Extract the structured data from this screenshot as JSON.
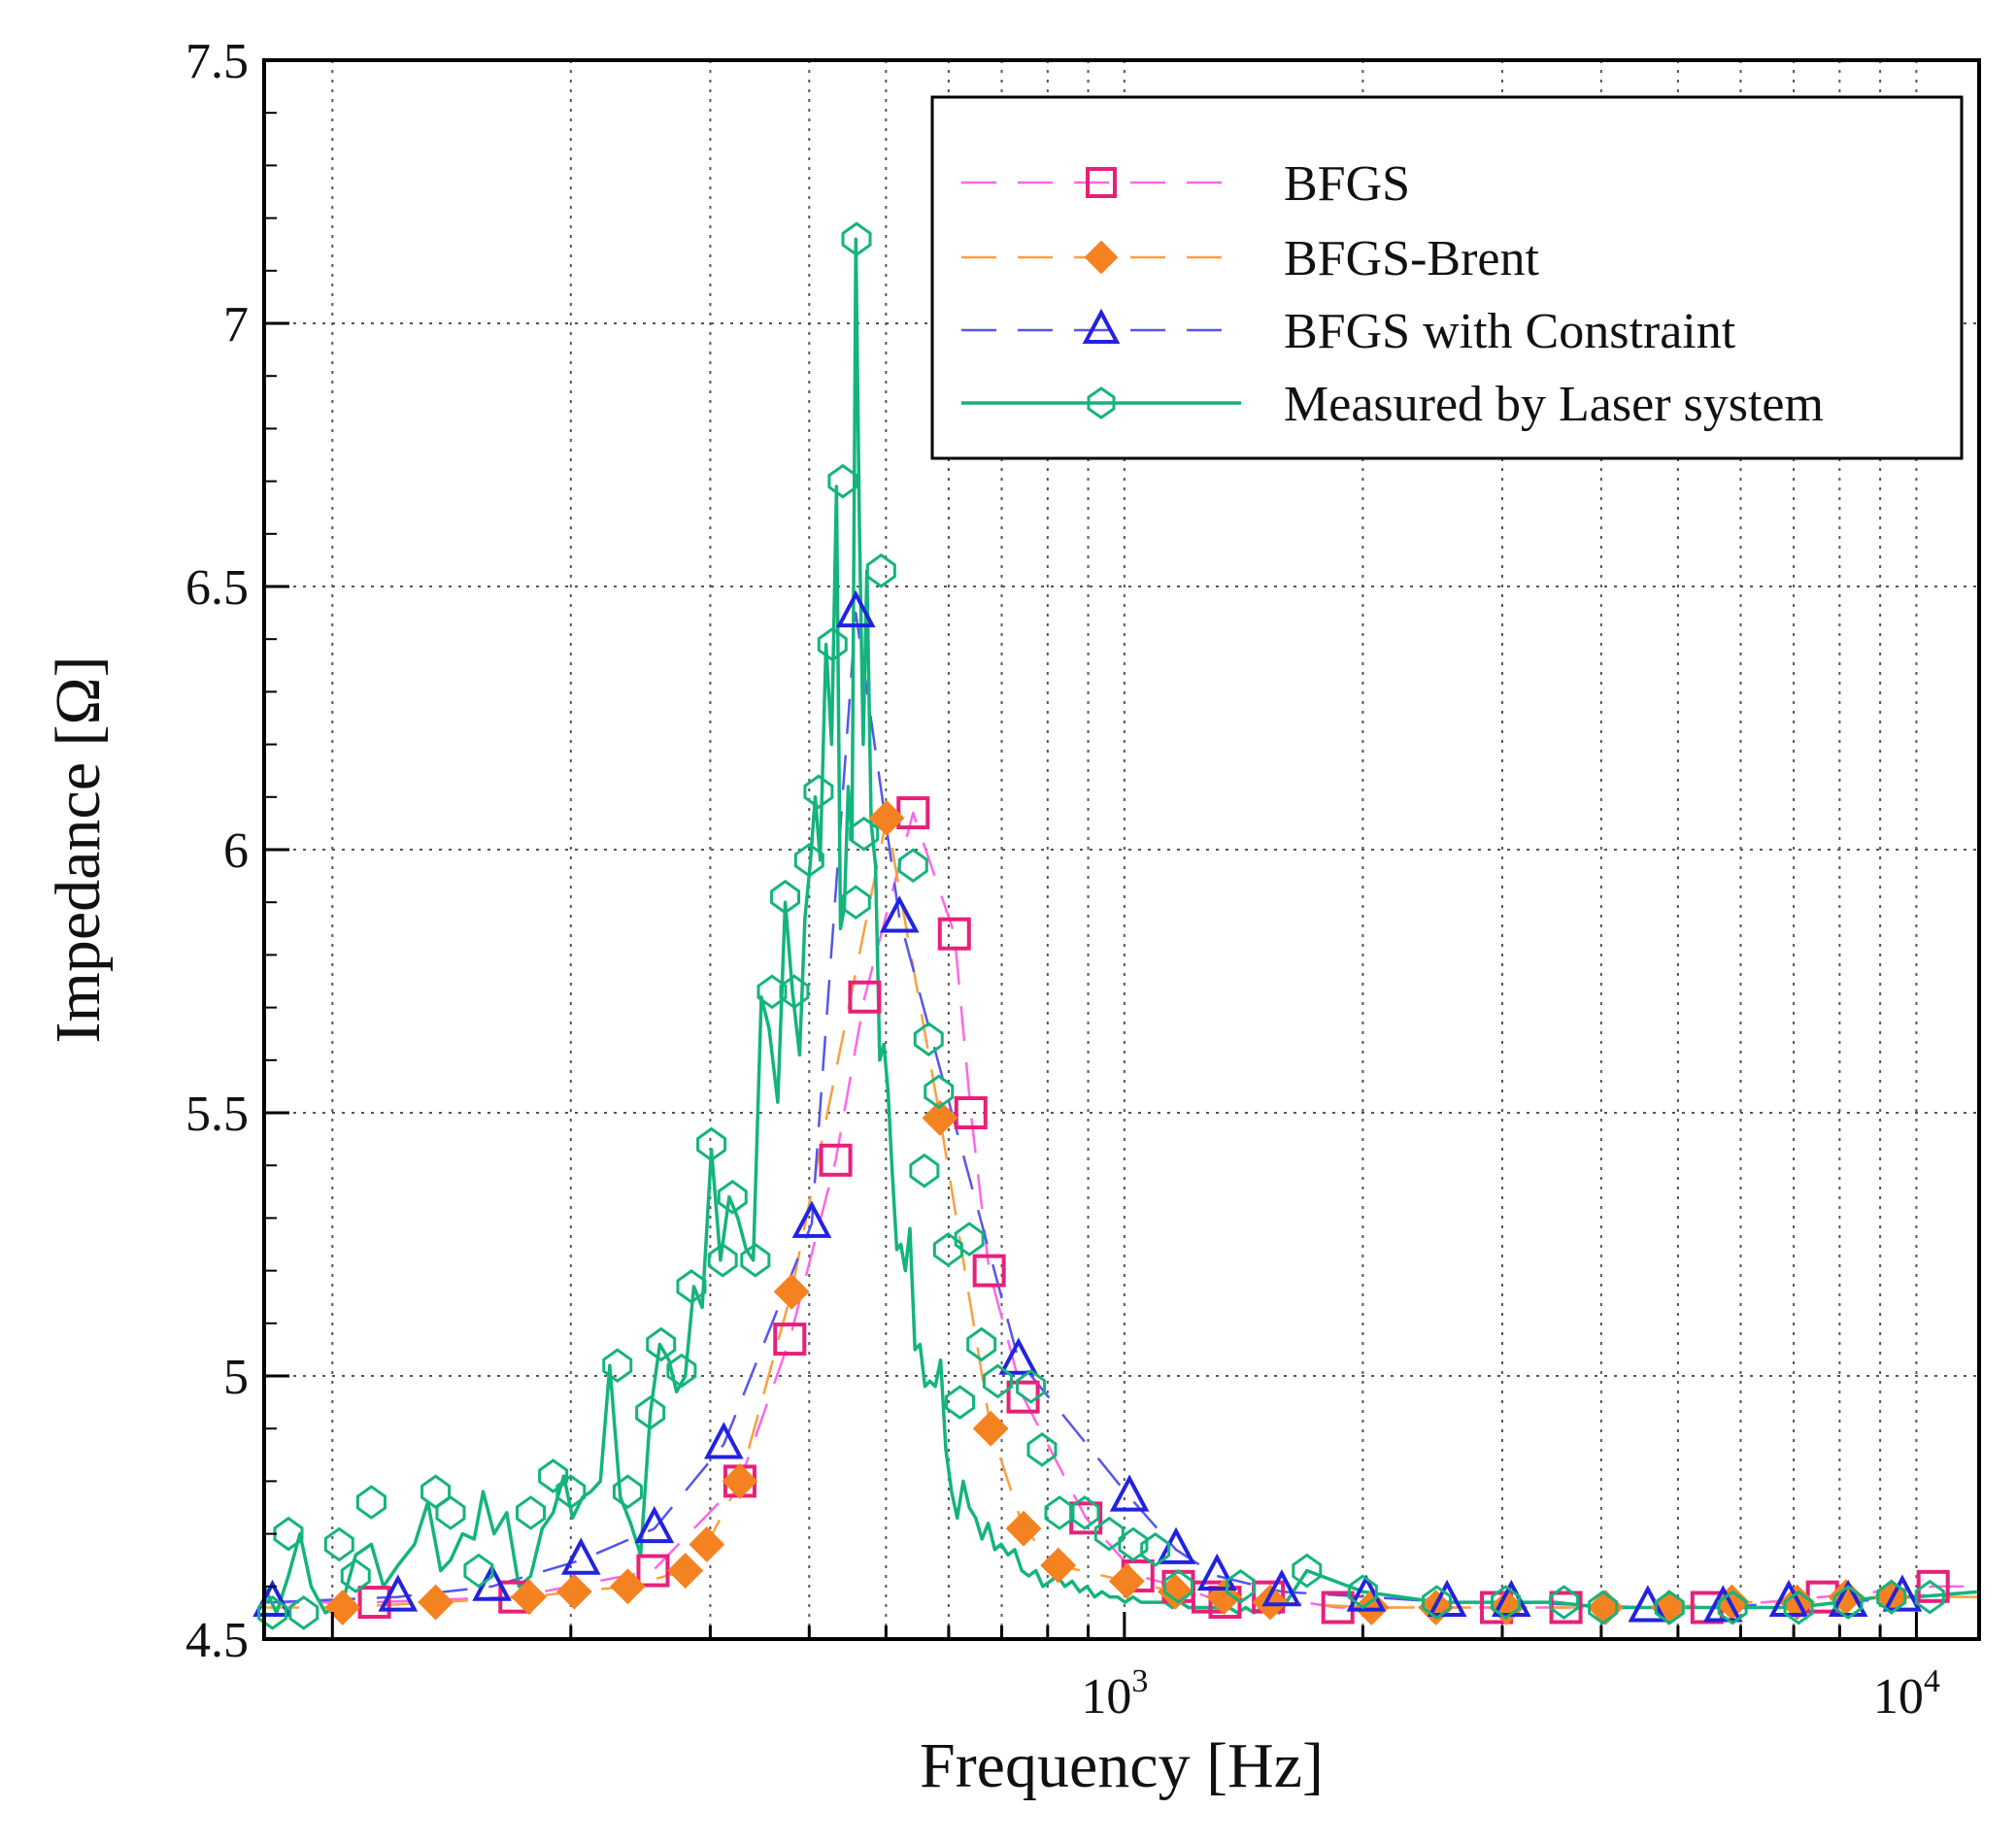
{
  "chart_data": {
    "type": "line",
    "title": "",
    "xlabel": "Frequency [Hz]",
    "ylabel": "Impedance [Ω]",
    "xscale": "log",
    "xlim": [
      82,
      12000
    ],
    "ylim": [
      4.5,
      7.5
    ],
    "grid": true,
    "legend_position": "top-right",
    "x_ticks": [
      {
        "value": 1000,
        "base": "10",
        "exp": "3"
      },
      {
        "value": 10000,
        "base": "10",
        "exp": "4"
      }
    ],
    "y_ticks": [
      {
        "value": 4.5,
        "label": "4.5"
      },
      {
        "value": 5,
        "label": "5"
      },
      {
        "value": 5.5,
        "label": "5.5"
      },
      {
        "value": 6,
        "label": "6"
      },
      {
        "value": 6.5,
        "label": "6.5"
      },
      {
        "value": 7,
        "label": "7"
      },
      {
        "value": 7.5,
        "label": "7.5"
      }
    ],
    "series": [
      {
        "name": "BFGS",
        "color": "#e8207a",
        "line_color": "#ff66e8",
        "marker": "square",
        "dash": true,
        "x": [
          82,
          113,
          170,
          254,
          327,
          378,
          432,
          470,
          541,
          610,
          640,
          675,
          745,
          894,
          1040,
          1170,
          1275,
          1340,
          1520,
          1860,
          2950,
          3610,
          5440,
          7610,
          10500,
          12000
        ],
        "y": [
          4.57,
          4.57,
          4.58,
          4.63,
          4.8,
          5.07,
          5.41,
          5.72,
          6.07,
          5.84,
          5.5,
          5.2,
          4.96,
          4.73,
          4.62,
          4.6,
          4.58,
          4.57,
          4.58,
          4.56,
          4.56,
          4.56,
          4.56,
          4.58,
          4.6,
          4.6
        ]
      },
      {
        "name": "BFGS-Brent",
        "color": "#f58220",
        "line_color": "#f9a040",
        "marker": "diamond",
        "dash": true,
        "x": [
          82,
          103,
          135,
          177,
          202,
          236,
          279,
          297,
          327,
          380,
          501,
          585,
          678,
          746,
          825,
          1007,
          1160,
          1336,
          1528,
          2051,
          2473,
          3038,
          4049,
          4867,
          5847,
          7069,
          8146,
          9300,
          12000
        ],
        "y": [
          4.56,
          4.56,
          4.57,
          4.58,
          4.59,
          4.6,
          4.63,
          4.68,
          4.8,
          5.16,
          6.06,
          5.49,
          4.9,
          4.71,
          4.64,
          4.61,
          4.59,
          4.58,
          4.57,
          4.56,
          4.56,
          4.56,
          4.56,
          4.56,
          4.57,
          4.57,
          4.58,
          4.58,
          4.58
        ]
      },
      {
        "name": "BFGS with Constraint",
        "color": "#2222e0",
        "line_color": "#5555f0",
        "marker": "triangle",
        "dash": true,
        "x": [
          82,
          84,
          121,
          159,
          206,
          255,
          312,
          403,
          458,
          520,
          735,
          1015,
          1162,
          1309,
          1580,
          2020,
          2555,
          3080,
          4580,
          5700,
          6900,
          8200,
          9600,
          12000
        ],
        "y": [
          4.57,
          4.57,
          4.58,
          4.6,
          4.65,
          4.71,
          4.87,
          5.29,
          6.45,
          5.87,
          5.03,
          4.77,
          4.67,
          4.62,
          4.59,
          4.58,
          4.57,
          4.57,
          4.56,
          4.56,
          4.57,
          4.57,
          4.58,
          4.59
        ]
      },
      {
        "name": "Measured by Laser system",
        "color": "#14b47c",
        "line_color": "#14b47c",
        "marker": "circle",
        "dash": false,
        "x": [
          82,
          85,
          88,
          91,
          94,
          98,
          103,
          107,
          112,
          116,
          121,
          127,
          132,
          137,
          141,
          146,
          151,
          155,
          160,
          166,
          172,
          178,
          184,
          190,
          196,
          201,
          207,
          212,
          218,
          224,
          231,
          238,
          245,
          252,
          259,
          266,
          272,
          279,
          286,
          293,
          301,
          309,
          317,
          325,
          333,
          340,
          348,
          356,
          365,
          373,
          381,
          389,
          395,
          401,
          407,
          413,
          420,
          427,
          433,
          438,
          443,
          448,
          453,
          458,
          463,
          468,
          473,
          479,
          485,
          491,
          497,
          503,
          509,
          516,
          522,
          529,
          536,
          544,
          552,
          560,
          568,
          577,
          586,
          595,
          605,
          615,
          626,
          637,
          649,
          661,
          673,
          686,
          699,
          713,
          727,
          742,
          757,
          773,
          789,
          806,
          823,
          841,
          859,
          878,
          897,
          917,
          937,
          958,
          980,
          1002,
          1025,
          1049,
          1073,
          1098,
          1124,
          1150,
          1177,
          1205,
          1234,
          1263,
          1293,
          1324,
          1356,
          1389,
          1423,
          1458,
          1494,
          1531,
          1569,
          1700,
          2000,
          2500,
          3000,
          3500,
          4000,
          5000,
          6000,
          7000,
          8000,
          9000,
          10000,
          12000
        ],
        "y": [
          4.6,
          4.55,
          4.62,
          4.7,
          4.6,
          4.55,
          4.57,
          4.66,
          4.68,
          4.6,
          4.64,
          4.68,
          4.76,
          4.63,
          4.65,
          4.7,
          4.69,
          4.78,
          4.7,
          4.74,
          4.6,
          4.62,
          4.71,
          4.74,
          4.81,
          4.73,
          4.77,
          4.78,
          4.8,
          5.02,
          4.77,
          4.72,
          4.66,
          4.93,
          5.06,
          5.03,
          4.97,
          5.0,
          5.17,
          5.13,
          5.43,
          5.22,
          5.34,
          5.3,
          5.24,
          5.22,
          5.72,
          5.66,
          5.52,
          5.9,
          5.73,
          5.61,
          5.87,
          5.97,
          6.1,
          5.98,
          6.39,
          6.2,
          6.69,
          5.85,
          5.89,
          6.12,
          6.02,
          7.16,
          6.6,
          6.2,
          6.53,
          6.05,
          5.97,
          5.6,
          5.63,
          5.54,
          5.39,
          5.24,
          5.25,
          5.2,
          5.28,
          5.05,
          5.06,
          4.98,
          4.99,
          4.98,
          5.03,
          4.86,
          4.78,
          4.73,
          4.8,
          4.75,
          4.73,
          4.69,
          4.72,
          4.67,
          4.68,
          4.66,
          4.67,
          4.63,
          4.62,
          4.63,
          4.6,
          4.61,
          4.62,
          4.6,
          4.61,
          4.59,
          4.6,
          4.58,
          4.59,
          4.58,
          4.58,
          4.57,
          4.58,
          4.57,
          4.57,
          4.57,
          4.57,
          4.56,
          4.57,
          4.56,
          4.56,
          4.56,
          4.56,
          4.56,
          4.56,
          4.55,
          4.56,
          4.55,
          4.56,
          4.56,
          4.55,
          4.63,
          4.59,
          4.57,
          4.57,
          4.57,
          4.56,
          4.56,
          4.56,
          4.56,
          4.57,
          4.58,
          4.58,
          4.59
        ]
      }
    ],
    "measured_markers": [
      {
        "x": 84,
        "y": 4.55
      },
      {
        "x": 88,
        "y": 4.7
      },
      {
        "x": 92,
        "y": 4.55
      },
      {
        "x": 102,
        "y": 4.68
      },
      {
        "x": 107,
        "y": 4.62
      },
      {
        "x": 112,
        "y": 4.76
      },
      {
        "x": 135,
        "y": 4.78
      },
      {
        "x": 141,
        "y": 4.74
      },
      {
        "x": 153,
        "y": 4.63
      },
      {
        "x": 178,
        "y": 4.74
      },
      {
        "x": 190,
        "y": 4.81
      },
      {
        "x": 200,
        "y": 4.78
      },
      {
        "x": 229,
        "y": 5.02
      },
      {
        "x": 236,
        "y": 4.78
      },
      {
        "x": 252,
        "y": 4.93
      },
      {
        "x": 260,
        "y": 5.06
      },
      {
        "x": 276,
        "y": 5.01
      },
      {
        "x": 284,
        "y": 5.17
      },
      {
        "x": 301,
        "y": 5.44
      },
      {
        "x": 311,
        "y": 5.22
      },
      {
        "x": 320,
        "y": 5.34
      },
      {
        "x": 342,
        "y": 5.22
      },
      {
        "x": 359,
        "y": 5.73
      },
      {
        "x": 373,
        "y": 5.91
      },
      {
        "x": 383,
        "y": 5.73
      },
      {
        "x": 400,
        "y": 5.98
      },
      {
        "x": 411,
        "y": 6.11
      },
      {
        "x": 428,
        "y": 6.39
      },
      {
        "x": 441,
        "y": 6.7
      },
      {
        "x": 458,
        "y": 5.9
      },
      {
        "x": 459,
        "y": 7.16
      },
      {
        "x": 469,
        "y": 6.03
      },
      {
        "x": 493,
        "y": 6.53
      },
      {
        "x": 541,
        "y": 5.97
      },
      {
        "x": 559,
        "y": 5.39
      },
      {
        "x": 566,
        "y": 5.64
      },
      {
        "x": 583,
        "y": 5.54
      },
      {
        "x": 599,
        "y": 5.24
      },
      {
        "x": 620,
        "y": 4.95
      },
      {
        "x": 637,
        "y": 5.26
      },
      {
        "x": 660,
        "y": 5.06
      },
      {
        "x": 692,
        "y": 4.99
      },
      {
        "x": 762,
        "y": 4.98
      },
      {
        "x": 787,
        "y": 4.86
      },
      {
        "x": 828,
        "y": 4.74
      },
      {
        "x": 891,
        "y": 4.74
      },
      {
        "x": 957,
        "y": 4.7
      },
      {
        "x": 1026,
        "y": 4.68
      },
      {
        "x": 1094,
        "y": 4.67
      },
      {
        "x": 1170,
        "y": 4.6
      },
      {
        "x": 1402,
        "y": 4.6
      },
      {
        "x": 1700,
        "y": 4.63
      },
      {
        "x": 2000,
        "y": 4.59
      },
      {
        "x": 2480,
        "y": 4.57
      },
      {
        "x": 3030,
        "y": 4.57
      },
      {
        "x": 3590,
        "y": 4.57
      },
      {
        "x": 4020,
        "y": 4.56
      },
      {
        "x": 4880,
        "y": 4.56
      },
      {
        "x": 5860,
        "y": 4.56
      },
      {
        "x": 7100,
        "y": 4.56
      },
      {
        "x": 8200,
        "y": 4.57
      },
      {
        "x": 9300,
        "y": 4.58
      },
      {
        "x": 10400,
        "y": 4.58
      }
    ]
  }
}
